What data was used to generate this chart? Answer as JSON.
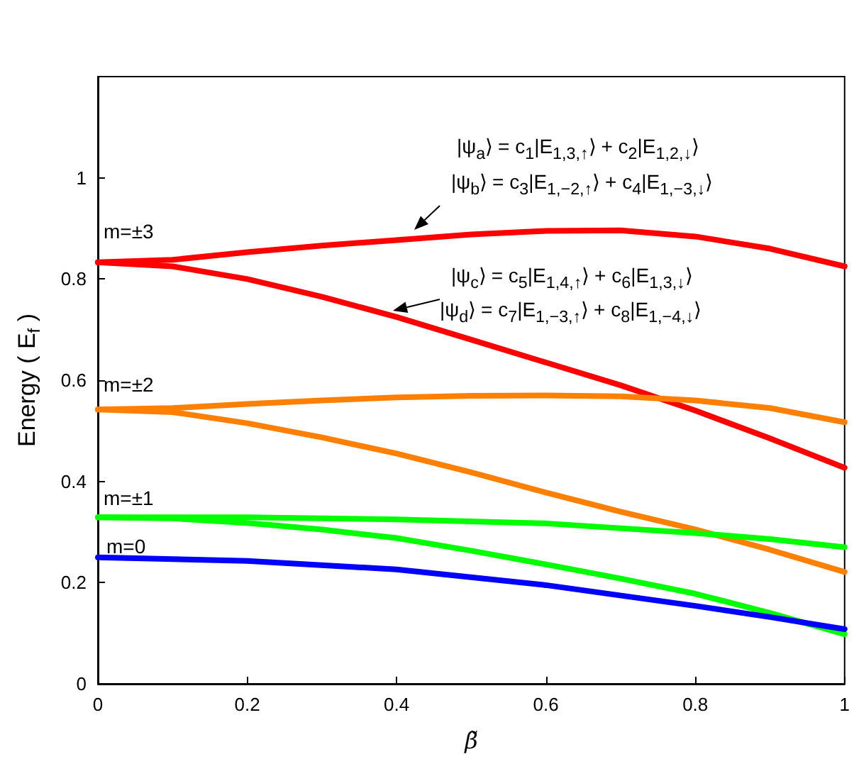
{
  "chart_data": {
    "type": "line",
    "xlabel": "β̃",
    "ylabel": "Energy ( E$_{f}$ )",
    "xlim": [
      0,
      1
    ],
    "xticks": [
      0,
      0.2,
      0.4,
      0.6,
      0.8,
      1
    ],
    "ylim": [
      0,
      1.2
    ],
    "yticks": [
      0,
      0.2,
      0.4,
      0.6,
      0.8,
      1
    ],
    "grid": false,
    "marker": "none",
    "line_style": "solid",
    "series": [
      {
        "color": "#ff0000",
        "x": [
          0,
          0.1,
          0.2,
          0.3,
          0.4,
          0.5,
          0.6,
          0.7,
          0.8,
          0.9,
          1
        ],
        "values": [
          0.833,
          0.838,
          0.853,
          0.866,
          0.877,
          0.888,
          0.895,
          0.896,
          0.884,
          0.86,
          0.825
        ]
      },
      {
        "color": "#ff0000",
        "x": [
          0,
          0.1,
          0.2,
          0.3,
          0.4,
          0.5,
          0.6,
          0.7,
          0.8,
          0.9,
          1
        ],
        "values": [
          0.833,
          0.825,
          0.8,
          0.765,
          0.725,
          0.68,
          0.635,
          0.59,
          0.54,
          0.485,
          0.427
        ]
      },
      {
        "color": "#ff8000",
        "x": [
          0,
          0.1,
          0.2,
          0.3,
          0.4,
          0.5,
          0.6,
          0.7,
          0.8,
          0.9,
          1
        ],
        "values": [
          0.542,
          0.545,
          0.553,
          0.56,
          0.566,
          0.569,
          0.57,
          0.568,
          0.56,
          0.545,
          0.517
        ]
      },
      {
        "color": "#ff8000",
        "x": [
          0,
          0.1,
          0.2,
          0.3,
          0.4,
          0.5,
          0.6,
          0.7,
          0.8,
          0.9,
          1
        ],
        "values": [
          0.542,
          0.537,
          0.515,
          0.487,
          0.455,
          0.418,
          0.378,
          0.34,
          0.305,
          0.265,
          0.221
        ]
      },
      {
        "color": "#00ff00",
        "x": [
          0,
          0.2,
          0.4,
          0.6,
          0.8,
          0.9,
          1
        ],
        "values": [
          0.329,
          0.329,
          0.325,
          0.317,
          0.298,
          0.286,
          0.27
        ]
      },
      {
        "color": "#00ff00",
        "x": [
          0,
          0.1,
          0.2,
          0.3,
          0.4,
          0.5,
          0.6,
          0.7,
          0.8,
          0.9,
          1
        ],
        "values": [
          0.329,
          0.327,
          0.318,
          0.305,
          0.288,
          0.263,
          0.236,
          0.208,
          0.178,
          0.14,
          0.098
        ]
      },
      {
        "color": "#0000ff",
        "x": [
          0,
          0.2,
          0.4,
          0.6,
          0.8,
          0.9,
          1
        ],
        "values": [
          0.25,
          0.243,
          0.226,
          0.195,
          0.154,
          0.132,
          0.108
        ]
      }
    ],
    "annotations": [
      "m=±3",
      "m=±2",
      "m=±1",
      "m=0",
      "|ψ$_{a}$⟩ = c$_{1}$|E$_{1,3,↑}$⟩ + c$_{2}$|E$_{1,2,↓}$⟩",
      "|ψ$_{b}$⟩ = c$_{3}$|E$_{1,−2,↑}$⟩ + c$_{4}$|E$_{1,−3,↓}$⟩",
      "|ψ$_{c}$⟩ = c$_{5}$|E$_{1,4,↑}$⟩ + c$_{6}$|E$_{1,3,↓}$⟩",
      "|ψ$_{d}$⟩ = c$_{7}$|E$_{1,−3,↑}$⟩ + c$_{8}$|E$_{1,−4,↓}$⟩"
    ]
  }
}
